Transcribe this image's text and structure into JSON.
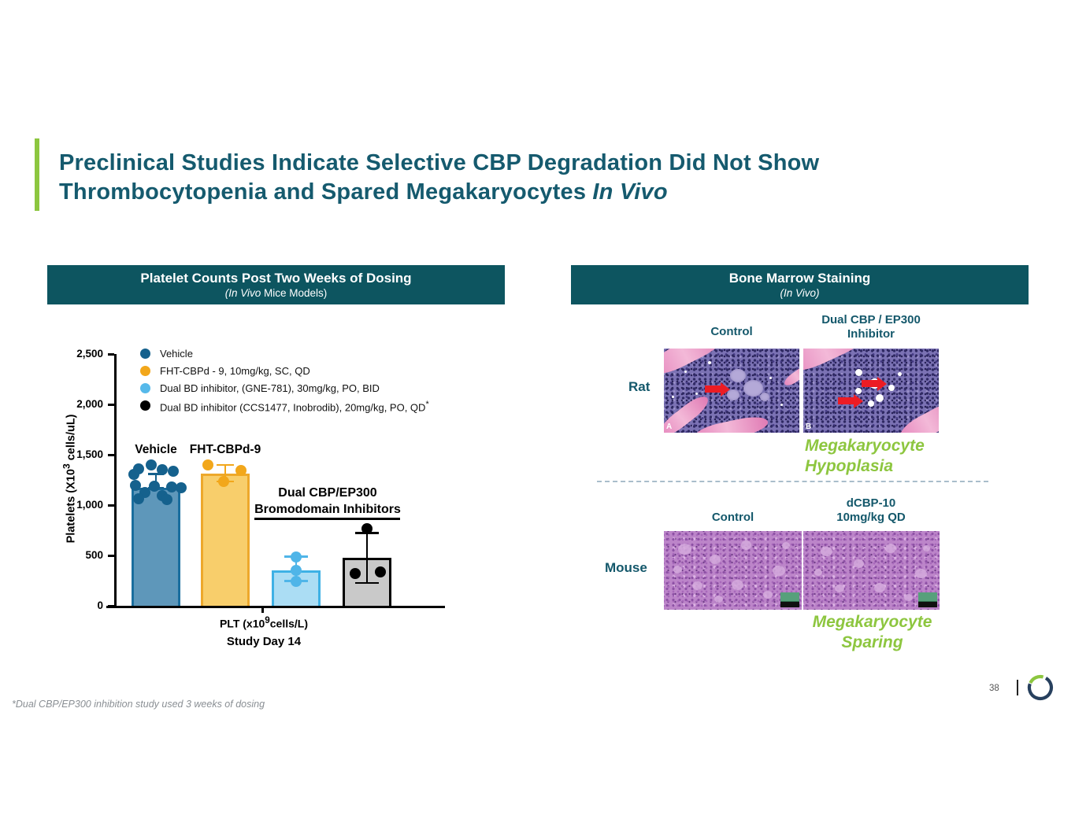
{
  "slide": {
    "title": {
      "line1": "Preclinical Studies Indicate Selective CBP Degradation Did Not Show",
      "line2_regular": "Thrombocytopenia and Spared Megakaryocytes ",
      "line2_italic": "In Vivo"
    },
    "footnote": "*Dual CBP/EP300 inhibition study used 3 weeks of dosing",
    "page_number": "38",
    "colors": {
      "band_teal": "#0D5560",
      "title_teal": "#155A6E",
      "accent_green": "#8CC63F",
      "result_green": "#8DC63F"
    }
  },
  "left_panel": {
    "header": {
      "title": "Platelet Counts Post Two Weeks of Dosing",
      "subtitle_italic": "(In Vivo",
      "subtitle_regular": " Mice Models)"
    }
  },
  "chart_data": {
    "type": "bar",
    "title": "Platelet Counts Post Two Weeks of Dosing",
    "subtitle": "(In Vivo Mice Models)",
    "ylabel_pre": "Platelets (X10",
    "ylabel_sup": "3",
    "ylabel_post": " cells/uL)",
    "xlabel_pre": "PLT (x10",
    "xlabel_sup": "9",
    "xlabel_post": "cells/L)",
    "xlabel2": "Study Day 14",
    "ylim": [
      0,
      2500
    ],
    "yticks": [
      0,
      500,
      1000,
      1500,
      2000,
      2500
    ],
    "grid": false,
    "legend_position": "upper-left",
    "legend": [
      {
        "label": "Vehicle",
        "color": "#15618D",
        "sup": ""
      },
      {
        "label": "FHT-CBPd - 9, 10mg/kg, SC, QD",
        "color": "#F2A71B",
        "sup": ""
      },
      {
        "label": "Dual BD inhibitor, (GNE-781), 30mg/kg, PO, BID",
        "color": "#56B9EA",
        "sup": ""
      },
      {
        "label": "Dual BD inhibitor  (CCS1477, Inobrodib), 20mg/kg, PO, QD",
        "color": "#000000",
        "sup": "*"
      }
    ],
    "groups": [
      {
        "name": "Vehicle",
        "top_label": "Vehicle",
        "bar": 1170,
        "fill": "#5E97BA",
        "border": "#1A6E9E",
        "dot_color": "#15618D",
        "err": [
          1170,
          1310
        ],
        "cap_w": 20,
        "dots": [
          [
            1400,
            -6
          ],
          [
            1360,
            -22
          ],
          [
            1352,
            8
          ],
          [
            1338,
            22
          ],
          [
            1302,
            -28
          ],
          [
            1198,
            -26
          ],
          [
            1188,
            -2
          ],
          [
            1182,
            20
          ],
          [
            1172,
            32
          ],
          [
            1128,
            -14
          ],
          [
            1090,
            8
          ],
          [
            1062,
            -22
          ],
          [
            1058,
            14
          ]
        ]
      },
      {
        "name": "FHT-CBPd-9",
        "top_label": "FHT-CBPd-9",
        "bar": 1310,
        "fill": "#F8CE6B",
        "border": "#EDA82B",
        "dot_color": "#F2A71B",
        "err": [
          1235,
          1398
        ],
        "cap_w": 22,
        "dots": [
          [
            1398,
            -22
          ],
          [
            1345,
            20
          ],
          [
            1235,
            -2
          ]
        ]
      },
      {
        "name": "Dual BD inhibitor (GNE-781)",
        "top_label": "",
        "bar": 350,
        "fill": "#ABDDF4",
        "border": "#3EB1E5",
        "dot_color": "#4FB5E8",
        "err": [
          245,
          488
        ],
        "cap_w": 30,
        "dots": [
          [
            488,
            0
          ],
          [
            352,
            0
          ],
          [
            245,
            0
          ]
        ]
      },
      {
        "name": "Dual BD inhibitor (CCS1477)",
        "top_label": "",
        "bar": 480,
        "fill": "#C9C9C9",
        "border": "#000000",
        "dot_color": "#000000",
        "err": [
          228,
          722
        ],
        "cap_w": 30,
        "dots": [
          [
            762,
            0
          ],
          [
            318,
            -15
          ],
          [
            335,
            17
          ]
        ]
      }
    ],
    "annotation": {
      "line1": "Dual CBP/EP300",
      "line2": "Bromodomain Inhibitors"
    }
  },
  "right_panel": {
    "header": {
      "title": "Bone Marrow Staining",
      "subtitle": "(In Vivo)"
    },
    "rat": {
      "row_label": "Rat",
      "col1": "Control",
      "col2_line1": "Dual CBP / EP300",
      "col2_line2": "Inhibitor",
      "img1_tag": "A",
      "img2_tag": "B",
      "result_line1": "Megakaryocyte",
      "result_line2": "Hypoplasia"
    },
    "mouse": {
      "row_label": "Mouse",
      "col1": "Control",
      "col2_line1": "dCBP-10",
      "col2_line2": "10mg/kg QD",
      "result_line1": "Megakaryocyte",
      "result_line2": "Sparing"
    }
  }
}
